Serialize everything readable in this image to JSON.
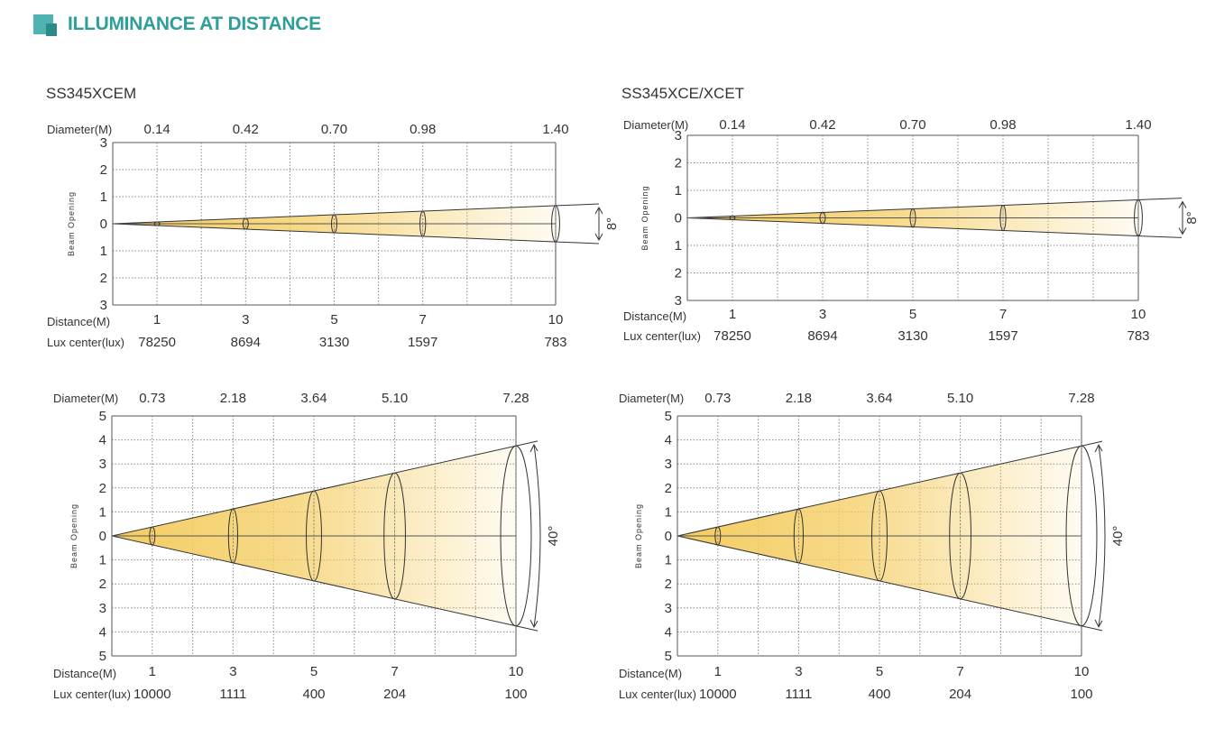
{
  "header": {
    "title": "ILLUMINANCE AT DISTANCE"
  },
  "colors": {
    "accent": "#2e9e9b",
    "beam": "#f4cd62"
  },
  "chart_data": [
    {
      "type": "line",
      "title": "SS345XCEM",
      "beam_angle": "8°",
      "ylabel": "Beam Opening",
      "diameter_label": "Diameter(M)",
      "distance_label": "Distance(M)",
      "lux_label": "Lux center(lux)",
      "y_ticks": [
        "3",
        "2",
        "1",
        "0",
        "1",
        "2",
        "3"
      ],
      "ylim": [
        -3,
        3
      ],
      "xlim": [
        0,
        10
      ],
      "x": [
        1,
        3,
        5,
        7,
        10
      ],
      "distance_labels": [
        "1",
        "3",
        "5",
        "7",
        "10"
      ],
      "diameter": [
        "0.14",
        "0.42",
        "0.70",
        "0.98",
        "1.40"
      ],
      "lux": [
        "78250",
        "8694",
        "3130",
        "1597",
        "783"
      ]
    },
    {
      "type": "line",
      "title": "SS345XCE/XCET",
      "beam_angle": "8°",
      "ylabel": "Beam Opening",
      "diameter_label": "Diameter(M)",
      "distance_label": "Distance(M)",
      "lux_label": "Lux center(lux)",
      "y_ticks": [
        "3",
        "2",
        "1",
        "0",
        "1",
        "2",
        "3"
      ],
      "ylim": [
        -3,
        3
      ],
      "xlim": [
        0,
        10
      ],
      "x": [
        1,
        3,
        5,
        7,
        10
      ],
      "distance_labels": [
        "1",
        "3",
        "5",
        "7",
        "10"
      ],
      "diameter": [
        "0.14",
        "0.42",
        "0.70",
        "0.98",
        "1.40"
      ],
      "lux": [
        "78250",
        "8694",
        "3130",
        "1597",
        "783"
      ]
    },
    {
      "type": "line",
      "title": "",
      "beam_angle": "40°",
      "ylabel": "Beam Opening",
      "diameter_label": "Diameter(M)",
      "distance_label": "Distance(M)",
      "lux_label": "Lux center(lux)",
      "y_ticks": [
        "5",
        "4",
        "3",
        "2",
        "1",
        "0",
        "1",
        "2",
        "3",
        "4",
        "5"
      ],
      "ylim": [
        -5,
        5
      ],
      "xlim": [
        0,
        10
      ],
      "x": [
        1,
        3,
        5,
        7,
        10
      ],
      "distance_labels": [
        "1",
        "3",
        "5",
        "7",
        "10"
      ],
      "diameter": [
        "0.73",
        "2.18",
        "3.64",
        "5.10",
        "7.28"
      ],
      "lux": [
        "10000",
        "1111",
        "400",
        "204",
        "100"
      ]
    },
    {
      "type": "line",
      "title": "",
      "beam_angle": "40°",
      "ylabel": "Beam Opening",
      "diameter_label": "Diameter(M)",
      "distance_label": "Distance(M)",
      "lux_label": "Lux center(lux)",
      "y_ticks": [
        "5",
        "4",
        "3",
        "2",
        "1",
        "0",
        "1",
        "2",
        "3",
        "4",
        "5"
      ],
      "ylim": [
        -5,
        5
      ],
      "xlim": [
        0,
        10
      ],
      "x": [
        1,
        3,
        5,
        7,
        10
      ],
      "distance_labels": [
        "1",
        "3",
        "5",
        "7",
        "10"
      ],
      "diameter": [
        "0.73",
        "2.18",
        "3.64",
        "5.10",
        "7.28"
      ],
      "lux": [
        "10000",
        "1111",
        "400",
        "204",
        "100"
      ]
    }
  ]
}
